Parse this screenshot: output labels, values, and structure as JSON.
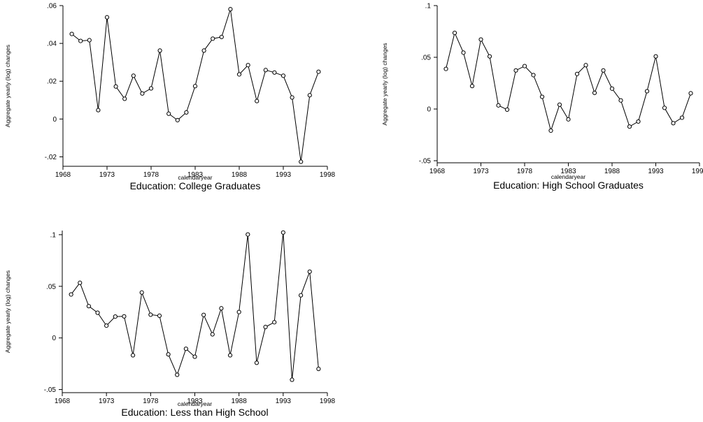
{
  "chart_data": [
    {
      "type": "line",
      "title": "Education: College Graduates",
      "xlabel": "calendaryear",
      "ylabel": "Aggregate yearly (log) changes",
      "xlim": [
        1968,
        1998
      ],
      "ylim": [
        -0.025,
        0.06
      ],
      "xticks": [
        1968,
        1973,
        1978,
        1983,
        1988,
        1993,
        1998
      ],
      "xtick_labels": [
        "1968",
        "1973",
        "1978",
        "1983",
        "1988",
        "1993",
        "1998"
      ],
      "yticks": [
        -0.02,
        0,
        0.02,
        0.04,
        0.06
      ],
      "ytick_labels": [
        "-.02",
        "0",
        ".02",
        ".04",
        ".06"
      ],
      "grid": false,
      "marker": "hollow-circle",
      "series": [
        {
          "x": [
            1969,
            1970,
            1971,
            1972,
            1973,
            1974,
            1975,
            1976,
            1977,
            1978,
            1979,
            1980,
            1981,
            1982,
            1983,
            1984,
            1985,
            1986,
            1987,
            1988,
            1989,
            1990,
            1991,
            1992,
            1993,
            1994,
            1995,
            1996,
            1997
          ],
          "y": [
            0.045,
            0.0413,
            0.0417,
            0.0047,
            0.0538,
            0.0172,
            0.0107,
            0.0229,
            0.0135,
            0.0162,
            0.0362,
            0.0028,
            -0.0006,
            0.0035,
            0.0174,
            0.0362,
            0.0425,
            0.0434,
            0.0581,
            0.0236,
            0.0285,
            0.0095,
            0.0259,
            0.0246,
            0.0229,
            0.0114,
            -0.0226,
            0.0126,
            0.025
          ]
        }
      ]
    },
    {
      "type": "line",
      "title": "Education: High School Graduates",
      "xlabel": "calendaryear",
      "ylabel": "Aggregate yearly (log) changes",
      "xlim": [
        1968,
        1998
      ],
      "ylim": [
        -0.052,
        0.1
      ],
      "xticks": [
        1968,
        1973,
        1978,
        1983,
        1988,
        1993,
        1998
      ],
      "xtick_labels": [
        "1968",
        "1973",
        "1978",
        "1983",
        "1988",
        "1993",
        "1998"
      ],
      "yticks": [
        -0.05,
        0,
        0.05,
        0.1
      ],
      "ytick_labels": [
        "-.05",
        "0",
        ".05",
        ".1"
      ],
      "grid": false,
      "marker": "hollow-circle",
      "series": [
        {
          "x": [
            1969,
            1970,
            1971,
            1972,
            1973,
            1974,
            1975,
            1976,
            1977,
            1978,
            1979,
            1980,
            1981,
            1982,
            1983,
            1984,
            1985,
            1986,
            1987,
            1988,
            1989,
            1990,
            1991,
            1992,
            1993,
            1994,
            1995,
            1996,
            1997
          ],
          "y": [
            0.0388,
            0.0736,
            0.0545,
            0.0222,
            0.0672,
            0.0509,
            0.0035,
            -0.0006,
            0.0373,
            0.0415,
            0.0328,
            0.0118,
            -0.0209,
            0.0042,
            -0.01,
            0.0339,
            0.0424,
            0.0156,
            0.0373,
            0.0197,
            0.0083,
            -0.017,
            -0.0121,
            0.0172,
            0.0509,
            0.0011,
            -0.0137,
            -0.0084,
            0.0152
          ]
        }
      ]
    },
    {
      "type": "line",
      "title": "Education: Less than High School",
      "xlabel": "calendaryear",
      "ylabel": "Aggregate yearly (log) changes",
      "xlim": [
        1968,
        1998
      ],
      "ylim": [
        -0.053,
        0.104
      ],
      "xticks": [
        1968,
        1973,
        1978,
        1983,
        1988,
        1993,
        1998
      ],
      "xtick_labels": [
        "1968",
        "1973",
        "1978",
        "1983",
        "1988",
        "1993",
        "1998"
      ],
      "yticks": [
        -0.05,
        0,
        0.05,
        0.1
      ],
      "ytick_labels": [
        "-.05",
        "0",
        ".05",
        ".1"
      ],
      "grid": false,
      "marker": "hollow-circle",
      "series": [
        {
          "x": [
            1969,
            1970,
            1971,
            1972,
            1973,
            1974,
            1975,
            1976,
            1977,
            1978,
            1979,
            1980,
            1981,
            1982,
            1983,
            1984,
            1985,
            1986,
            1987,
            1988,
            1989,
            1990,
            1991,
            1992,
            1993,
            1994,
            1995,
            1996,
            1997
          ],
          "y": [
            0.0421,
            0.0534,
            0.0308,
            0.0244,
            0.0119,
            0.0207,
            0.0209,
            -0.0168,
            0.044,
            0.0225,
            0.0215,
            -0.0159,
            -0.0357,
            -0.0105,
            -0.0182,
            0.0223,
            0.0035,
            0.0287,
            -0.0168,
            0.0251,
            0.1002,
            -0.0241,
            0.0106,
            0.0152,
            0.1021,
            -0.0405,
            0.0413,
            0.0642,
            -0.03
          ]
        }
      ]
    }
  ]
}
